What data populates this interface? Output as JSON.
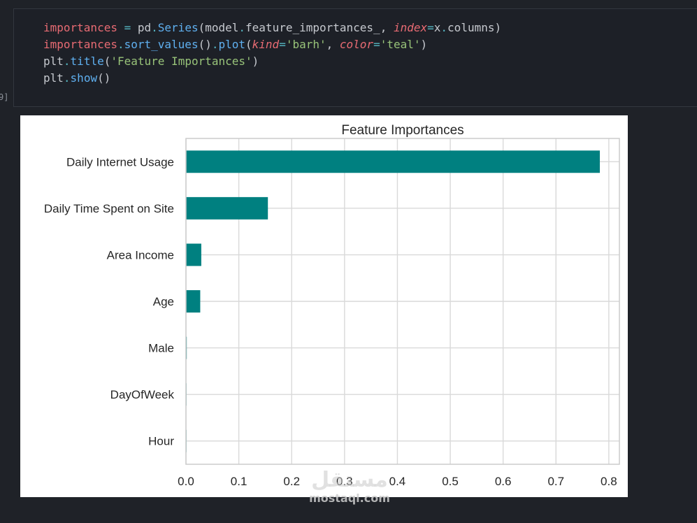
{
  "cell": {
    "exec_count": "9]",
    "lines": [
      [
        {
          "t": "importances",
          "c": "var"
        },
        {
          "t": " = ",
          "c": "op"
        },
        {
          "t": "pd",
          "c": "plain"
        },
        {
          "t": ".",
          "c": "op"
        },
        {
          "t": "Series",
          "c": "fn"
        },
        {
          "t": "(",
          "c": "plain"
        },
        {
          "t": "model",
          "c": "plain"
        },
        {
          "t": ".",
          "c": "op"
        },
        {
          "t": "feature_importances_",
          "c": "plain"
        },
        {
          "t": ", ",
          "c": "plain"
        },
        {
          "t": "index",
          "c": "kw"
        },
        {
          "t": "=",
          "c": "op"
        },
        {
          "t": "x",
          "c": "plain"
        },
        {
          "t": ".",
          "c": "op"
        },
        {
          "t": "columns",
          "c": "plain"
        },
        {
          "t": ")",
          "c": "plain"
        }
      ],
      [
        {
          "t": "importances",
          "c": "var"
        },
        {
          "t": ".",
          "c": "op"
        },
        {
          "t": "sort_values",
          "c": "fn"
        },
        {
          "t": "()",
          "c": "plain"
        },
        {
          "t": ".",
          "c": "op"
        },
        {
          "t": "plot",
          "c": "fn"
        },
        {
          "t": "(",
          "c": "plain"
        },
        {
          "t": "kind",
          "c": "kw"
        },
        {
          "t": "=",
          "c": "op"
        },
        {
          "t": "'barh'",
          "c": "str"
        },
        {
          "t": ", ",
          "c": "plain"
        },
        {
          "t": "color",
          "c": "kw"
        },
        {
          "t": "=",
          "c": "op"
        },
        {
          "t": "'teal'",
          "c": "str"
        },
        {
          "t": ")",
          "c": "plain"
        }
      ],
      [
        {
          "t": "plt",
          "c": "plain"
        },
        {
          "t": ".",
          "c": "op"
        },
        {
          "t": "title",
          "c": "fn"
        },
        {
          "t": "(",
          "c": "plain"
        },
        {
          "t": "'Feature Importances'",
          "c": "str"
        },
        {
          "t": ")",
          "c": "plain"
        }
      ],
      [
        {
          "t": "plt",
          "c": "plain"
        },
        {
          "t": ".",
          "c": "op"
        },
        {
          "t": "show",
          "c": "fn"
        },
        {
          "t": "()",
          "c": "plain"
        }
      ]
    ]
  },
  "chart_data": {
    "type": "bar",
    "orientation": "horizontal",
    "title": "Feature Importances",
    "xlabel": "",
    "ylabel": "",
    "categories": [
      "Daily Internet Usage",
      "Daily Time Spent on Site",
      "Area Income",
      "Age",
      "Male",
      "DayOfWeek",
      "Hour"
    ],
    "values": [
      0.783,
      0.155,
      0.029,
      0.027,
      0.0015,
      0.001,
      0.001
    ],
    "xlim": [
      0,
      0.82
    ],
    "xticks": [
      "0.0",
      "0.1",
      "0.2",
      "0.3",
      "0.4",
      "0.5",
      "0.6",
      "0.7",
      "0.8"
    ],
    "xtick_values": [
      0,
      0.1,
      0.2,
      0.3,
      0.4,
      0.5,
      0.6,
      0.7,
      0.8
    ],
    "bar_color": "#008080",
    "grid": true
  },
  "watermark": {
    "logo": "مستقل",
    "site": "mostaql.com"
  }
}
